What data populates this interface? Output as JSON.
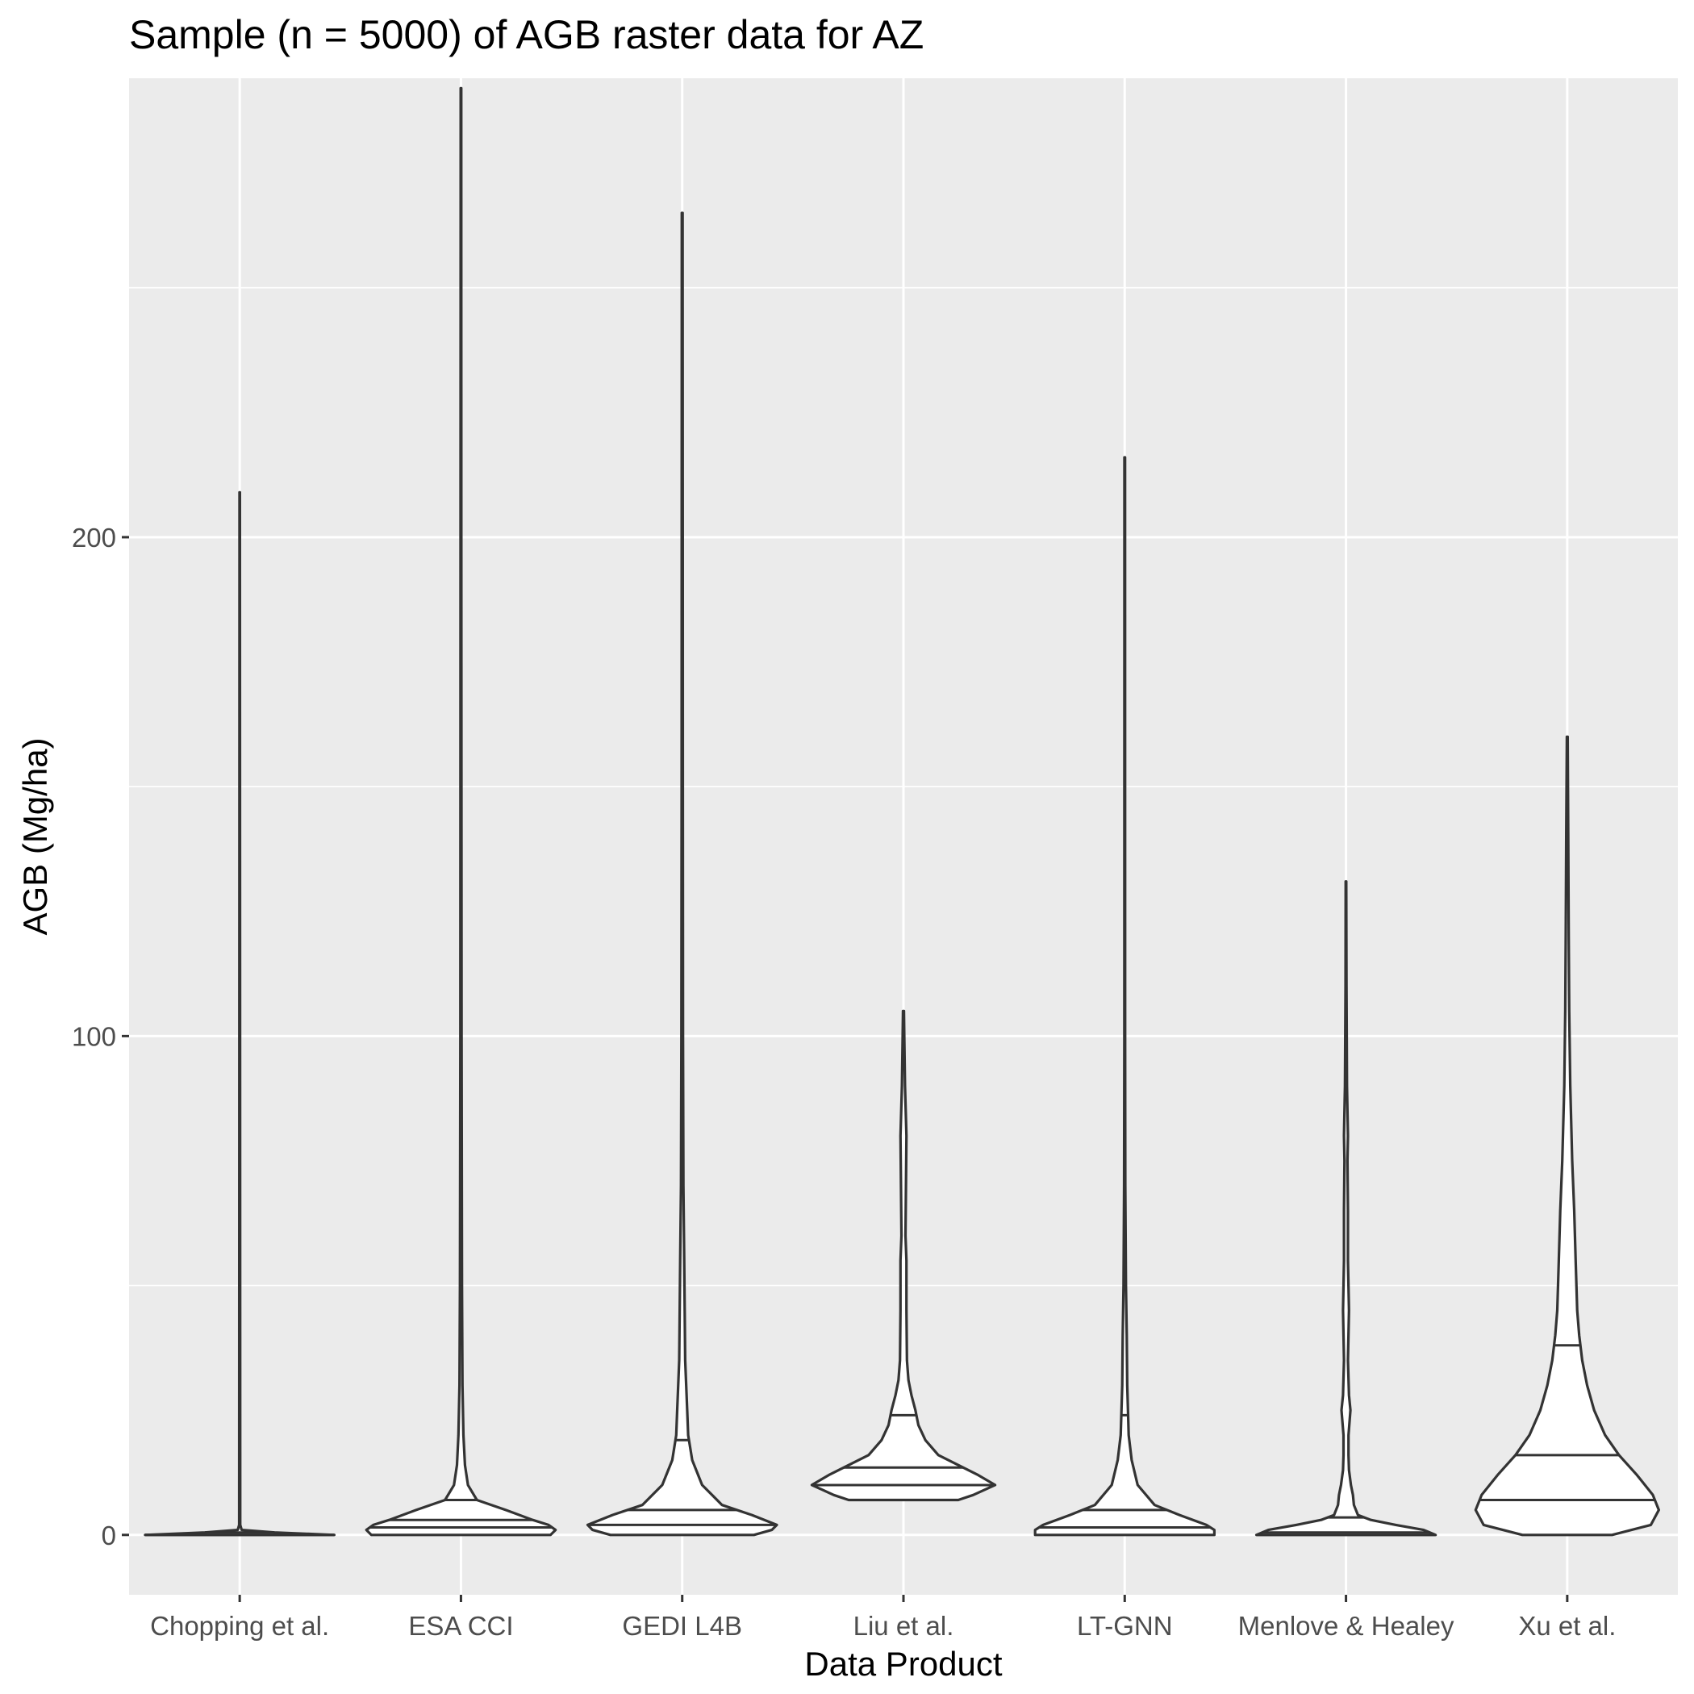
{
  "chart_data": {
    "type": "violin",
    "title": "Sample (n = 5000) of AGB raster data for AZ",
    "xlabel": "Data Product",
    "ylabel": "AGB (Mg/ha)",
    "ylim": [
      -12,
      292
    ],
    "yticks": [
      0,
      100,
      200
    ],
    "grid": true,
    "quantile_lines": [
      "25%",
      "50%",
      "75%"
    ],
    "colors": {
      "panel": "#ebebeb",
      "grid": "#ffffff",
      "violin_fill": "#ffffff",
      "violin_stroke": "#333333",
      "tick_label": "#4d4d4d"
    },
    "series": [
      {
        "category": "Chopping et al.",
        "min": 0,
        "max": 209,
        "quantiles": [
          0,
          0,
          0.5
        ],
        "density": [
          [
            0,
            0.95
          ],
          [
            0.5,
            0.35
          ],
          [
            1,
            0.02
          ],
          [
            2,
            0.005
          ],
          [
            209,
            0.002
          ]
        ]
      },
      {
        "category": "ESA CCI",
        "min": 0,
        "max": 290,
        "quantiles": [
          1.5,
          3,
          7
        ],
        "density": [
          [
            0,
            0.9
          ],
          [
            1,
            0.95
          ],
          [
            2,
            0.88
          ],
          [
            3,
            0.72
          ],
          [
            5,
            0.45
          ],
          [
            7,
            0.16
          ],
          [
            10,
            0.07
          ],
          [
            14,
            0.04
          ],
          [
            20,
            0.025
          ],
          [
            30,
            0.015
          ],
          [
            50,
            0.01
          ],
          [
            100,
            0.006
          ],
          [
            200,
            0.004
          ],
          [
            290,
            0.003
          ]
        ]
      },
      {
        "category": "GEDI L4B",
        "min": 0,
        "max": 265,
        "quantiles": [
          2,
          5,
          19
        ],
        "density": [
          [
            0,
            0.72
          ],
          [
            1,
            0.9
          ],
          [
            2,
            0.95
          ],
          [
            4,
            0.7
          ],
          [
            6,
            0.4
          ],
          [
            10,
            0.2
          ],
          [
            15,
            0.1
          ],
          [
            20,
            0.06
          ],
          [
            25,
            0.05
          ],
          [
            35,
            0.03
          ],
          [
            45,
            0.025
          ],
          [
            55,
            0.02
          ],
          [
            70,
            0.012
          ],
          [
            100,
            0.008
          ],
          [
            150,
            0.006
          ],
          [
            265,
            0.004
          ]
        ]
      },
      {
        "category": "Liu et al.",
        "min": 7,
        "max": 105,
        "quantiles": [
          10,
          13.5,
          24
        ],
        "density": [
          [
            7,
            0.55
          ],
          [
            8,
            0.7
          ],
          [
            10,
            0.92
          ],
          [
            12,
            0.75
          ],
          [
            14,
            0.55
          ],
          [
            16,
            0.35
          ],
          [
            19,
            0.22
          ],
          [
            22,
            0.15
          ],
          [
            25,
            0.12
          ],
          [
            28,
            0.08
          ],
          [
            31,
            0.05
          ],
          [
            35,
            0.035
          ],
          [
            45,
            0.03
          ],
          [
            55,
            0.03
          ],
          [
            60,
            0.02
          ],
          [
            70,
            0.025
          ],
          [
            80,
            0.03
          ],
          [
            90,
            0.015
          ],
          [
            100,
            0.008
          ],
          [
            105,
            0.005
          ]
        ]
      },
      {
        "category": "LT-GNN",
        "min": 0,
        "max": 216,
        "quantiles": [
          1.5,
          5,
          24
        ],
        "density": [
          [
            0,
            0.9
          ],
          [
            1,
            0.9
          ],
          [
            2,
            0.82
          ],
          [
            4,
            0.55
          ],
          [
            6,
            0.3
          ],
          [
            10,
            0.13
          ],
          [
            15,
            0.07
          ],
          [
            20,
            0.04
          ],
          [
            30,
            0.025
          ],
          [
            40,
            0.02
          ],
          [
            50,
            0.012
          ],
          [
            70,
            0.006
          ],
          [
            100,
            0.004
          ],
          [
            216,
            0.003
          ]
        ]
      },
      {
        "category": "Menlove & Healey",
        "min": 0,
        "max": 131,
        "quantiles": [
          0,
          0.5,
          3.5
        ],
        "density": [
          [
            0,
            0.9
          ],
          [
            1,
            0.78
          ],
          [
            2,
            0.5
          ],
          [
            3,
            0.25
          ],
          [
            4,
            0.12
          ],
          [
            6,
            0.08
          ],
          [
            8,
            0.07
          ],
          [
            10,
            0.05
          ],
          [
            13,
            0.03
          ],
          [
            16,
            0.025
          ],
          [
            20,
            0.025
          ],
          [
            25,
            0.045
          ],
          [
            28,
            0.03
          ],
          [
            35,
            0.02
          ],
          [
            45,
            0.03
          ],
          [
            55,
            0.02
          ],
          [
            65,
            0.02
          ],
          [
            75,
            0.015
          ],
          [
            80,
            0.02
          ],
          [
            90,
            0.01
          ],
          [
            110,
            0.005
          ],
          [
            131,
            0.003
          ]
        ]
      },
      {
        "category": "Xu et al.",
        "min": 0,
        "max": 160,
        "quantiles": [
          7,
          16,
          38
        ],
        "density": [
          [
            0,
            0.45
          ],
          [
            2,
            0.84
          ],
          [
            5,
            0.92
          ],
          [
            8,
            0.86
          ],
          [
            12,
            0.7
          ],
          [
            16,
            0.52
          ],
          [
            20,
            0.38
          ],
          [
            25,
            0.27
          ],
          [
            30,
            0.2
          ],
          [
            35,
            0.15
          ],
          [
            40,
            0.12
          ],
          [
            45,
            0.1
          ],
          [
            55,
            0.085
          ],
          [
            65,
            0.07
          ],
          [
            75,
            0.05
          ],
          [
            90,
            0.03
          ],
          [
            105,
            0.02
          ],
          [
            120,
            0.015
          ],
          [
            140,
            0.01
          ],
          [
            160,
            0.004
          ]
        ]
      }
    ]
  }
}
